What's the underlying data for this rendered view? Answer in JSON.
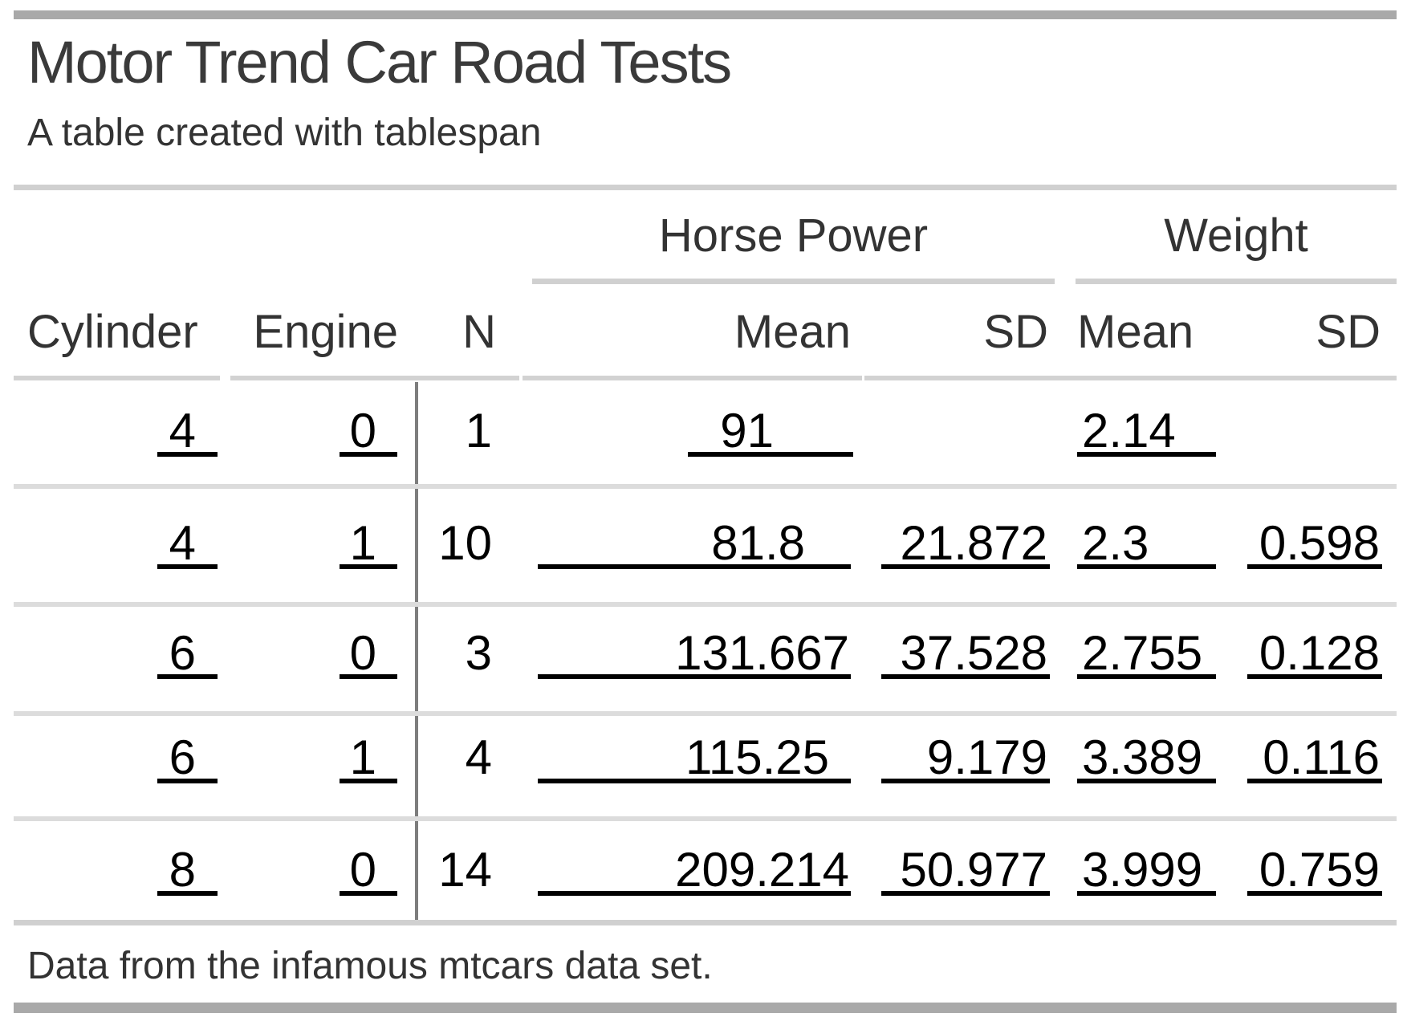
{
  "title": "Motor Trend Car Road Tests",
  "subtitle": "A table created with tablespan",
  "footnote": "Data from the infamous mtcars data set.",
  "spanners": [
    {
      "label": "Horse Power"
    },
    {
      "label": "Weight"
    }
  ],
  "columns": {
    "cylinder": "Cylinder",
    "engine": "Engine",
    "n": "N",
    "hp_mean": "Mean",
    "hp_sd": "SD",
    "wt_mean": "Mean",
    "wt_sd": "SD"
  },
  "rows": [
    {
      "cylinder": "4",
      "engine": "0",
      "n": "1",
      "hp_mean": "91",
      "hp_sd": "",
      "wt_mean": "2.14",
      "wt_sd": ""
    },
    {
      "cylinder": "4",
      "engine": "1",
      "n": "10",
      "hp_mean": "81.8",
      "hp_sd": "21.872",
      "wt_mean": "2.3",
      "wt_sd": "0.598"
    },
    {
      "cylinder": "6",
      "engine": "0",
      "n": "3",
      "hp_mean": "131.667",
      "hp_sd": "37.528",
      "wt_mean": "2.755",
      "wt_sd": "0.128"
    },
    {
      "cylinder": "6",
      "engine": "1",
      "n": "4",
      "hp_mean": "115.25",
      "hp_sd": "9.179",
      "wt_mean": "3.389",
      "wt_sd": "0.116"
    },
    {
      "cylinder": "8",
      "engine": "0",
      "n": "14",
      "hp_mean": "209.214",
      "hp_sd": "50.977",
      "wt_mean": "3.999",
      "wt_sd": "0.759"
    }
  ],
  "colors": {
    "outer_bar": "#a9a9a9",
    "light_rule": "#d0d0d0",
    "row_divider": "#dcdcdc",
    "column_divider": "#7d7d7d",
    "header_text": "#333333",
    "data_text": "#000000",
    "data_underline": "#000000"
  },
  "chart_data": {
    "type": "table",
    "title": "Motor Trend Car Road Tests",
    "subtitle": "A table created with tablespan",
    "footnote": "Data from the infamous mtcars data set.",
    "column_groups": [
      {
        "label": "Horse Power",
        "columns": [
          "Mean",
          "SD"
        ]
      },
      {
        "label": "Weight",
        "columns": [
          "Mean",
          "SD"
        ]
      }
    ],
    "columns": [
      "Cylinder",
      "Engine",
      "N",
      "Horse Power Mean",
      "Horse Power SD",
      "Weight Mean",
      "Weight SD"
    ],
    "rows": [
      [
        4,
        0,
        1,
        91,
        null,
        2.14,
        null
      ],
      [
        4,
        1,
        10,
        81.8,
        21.872,
        2.3,
        0.598
      ],
      [
        6,
        0,
        3,
        131.667,
        37.528,
        2.755,
        0.128
      ],
      [
        6,
        1,
        4,
        115.25,
        9.179,
        3.389,
        0.116
      ],
      [
        8,
        0,
        14,
        209.214,
        50.977,
        3.999,
        0.759
      ]
    ]
  }
}
